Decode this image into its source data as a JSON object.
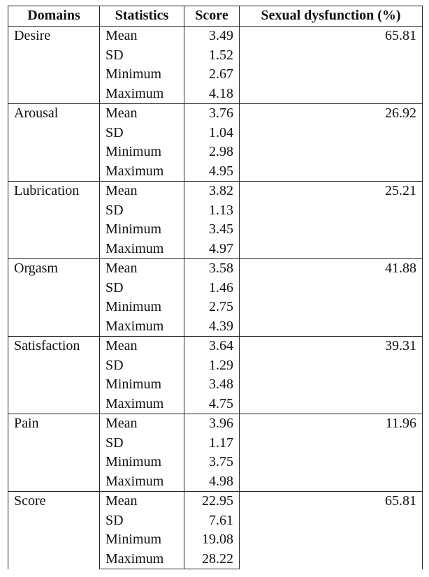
{
  "table": {
    "header": [
      "Domains",
      "Statistics",
      "Score",
      "Sexual dysfunction (%)"
    ],
    "groups": [
      {
        "domain": "Desire",
        "rows": [
          [
            "Mean",
            "3.49"
          ],
          [
            "SD",
            "1.52"
          ],
          [
            "Minimum",
            "2.67"
          ],
          [
            "Maximum",
            "4.18"
          ]
        ],
        "dysfunction": "65.81"
      },
      {
        "domain": "Arousal",
        "rows": [
          [
            "Mean",
            "3.76"
          ],
          [
            "SD",
            "1.04"
          ],
          [
            "Minimum",
            "2.98"
          ],
          [
            "Maximum",
            "4.95"
          ]
        ],
        "dysfunction": "26.92"
      },
      {
        "domain": "Lubrication",
        "rows": [
          [
            "Mean",
            "3.82"
          ],
          [
            "SD",
            "1.13"
          ],
          [
            "Minimum",
            "3.45"
          ],
          [
            "Maximum",
            "4.97"
          ]
        ],
        "dysfunction": "25.21"
      },
      {
        "domain": "Orgasm",
        "rows": [
          [
            "Mean",
            "3.58"
          ],
          [
            "SD",
            "1.46"
          ],
          [
            "Minimum",
            "2.75"
          ],
          [
            "Maximum",
            "4.39"
          ]
        ],
        "dysfunction": "41.88"
      },
      {
        "domain": "Satisfaction",
        "rows": [
          [
            "Mean",
            "3.64"
          ],
          [
            "SD",
            "1.29"
          ],
          [
            "Minimum",
            "3.48"
          ],
          [
            "Maximum",
            "4.75"
          ]
        ],
        "dysfunction": "39.31"
      },
      {
        "domain": "Pain",
        "rows": [
          [
            "Mean",
            "3.96"
          ],
          [
            "SD",
            "1.17"
          ],
          [
            "Minimum",
            "3.75"
          ],
          [
            "Maximum",
            "4.98"
          ]
        ],
        "dysfunction": "11.96"
      },
      {
        "domain": "Score",
        "rows": [
          [
            "Mean",
            "22.95"
          ],
          [
            "SD",
            "7.61"
          ],
          [
            "Minimum",
            "19.08"
          ],
          [
            "Maximum",
            "28.22"
          ]
        ],
        "dysfunction": "65.81"
      }
    ]
  }
}
